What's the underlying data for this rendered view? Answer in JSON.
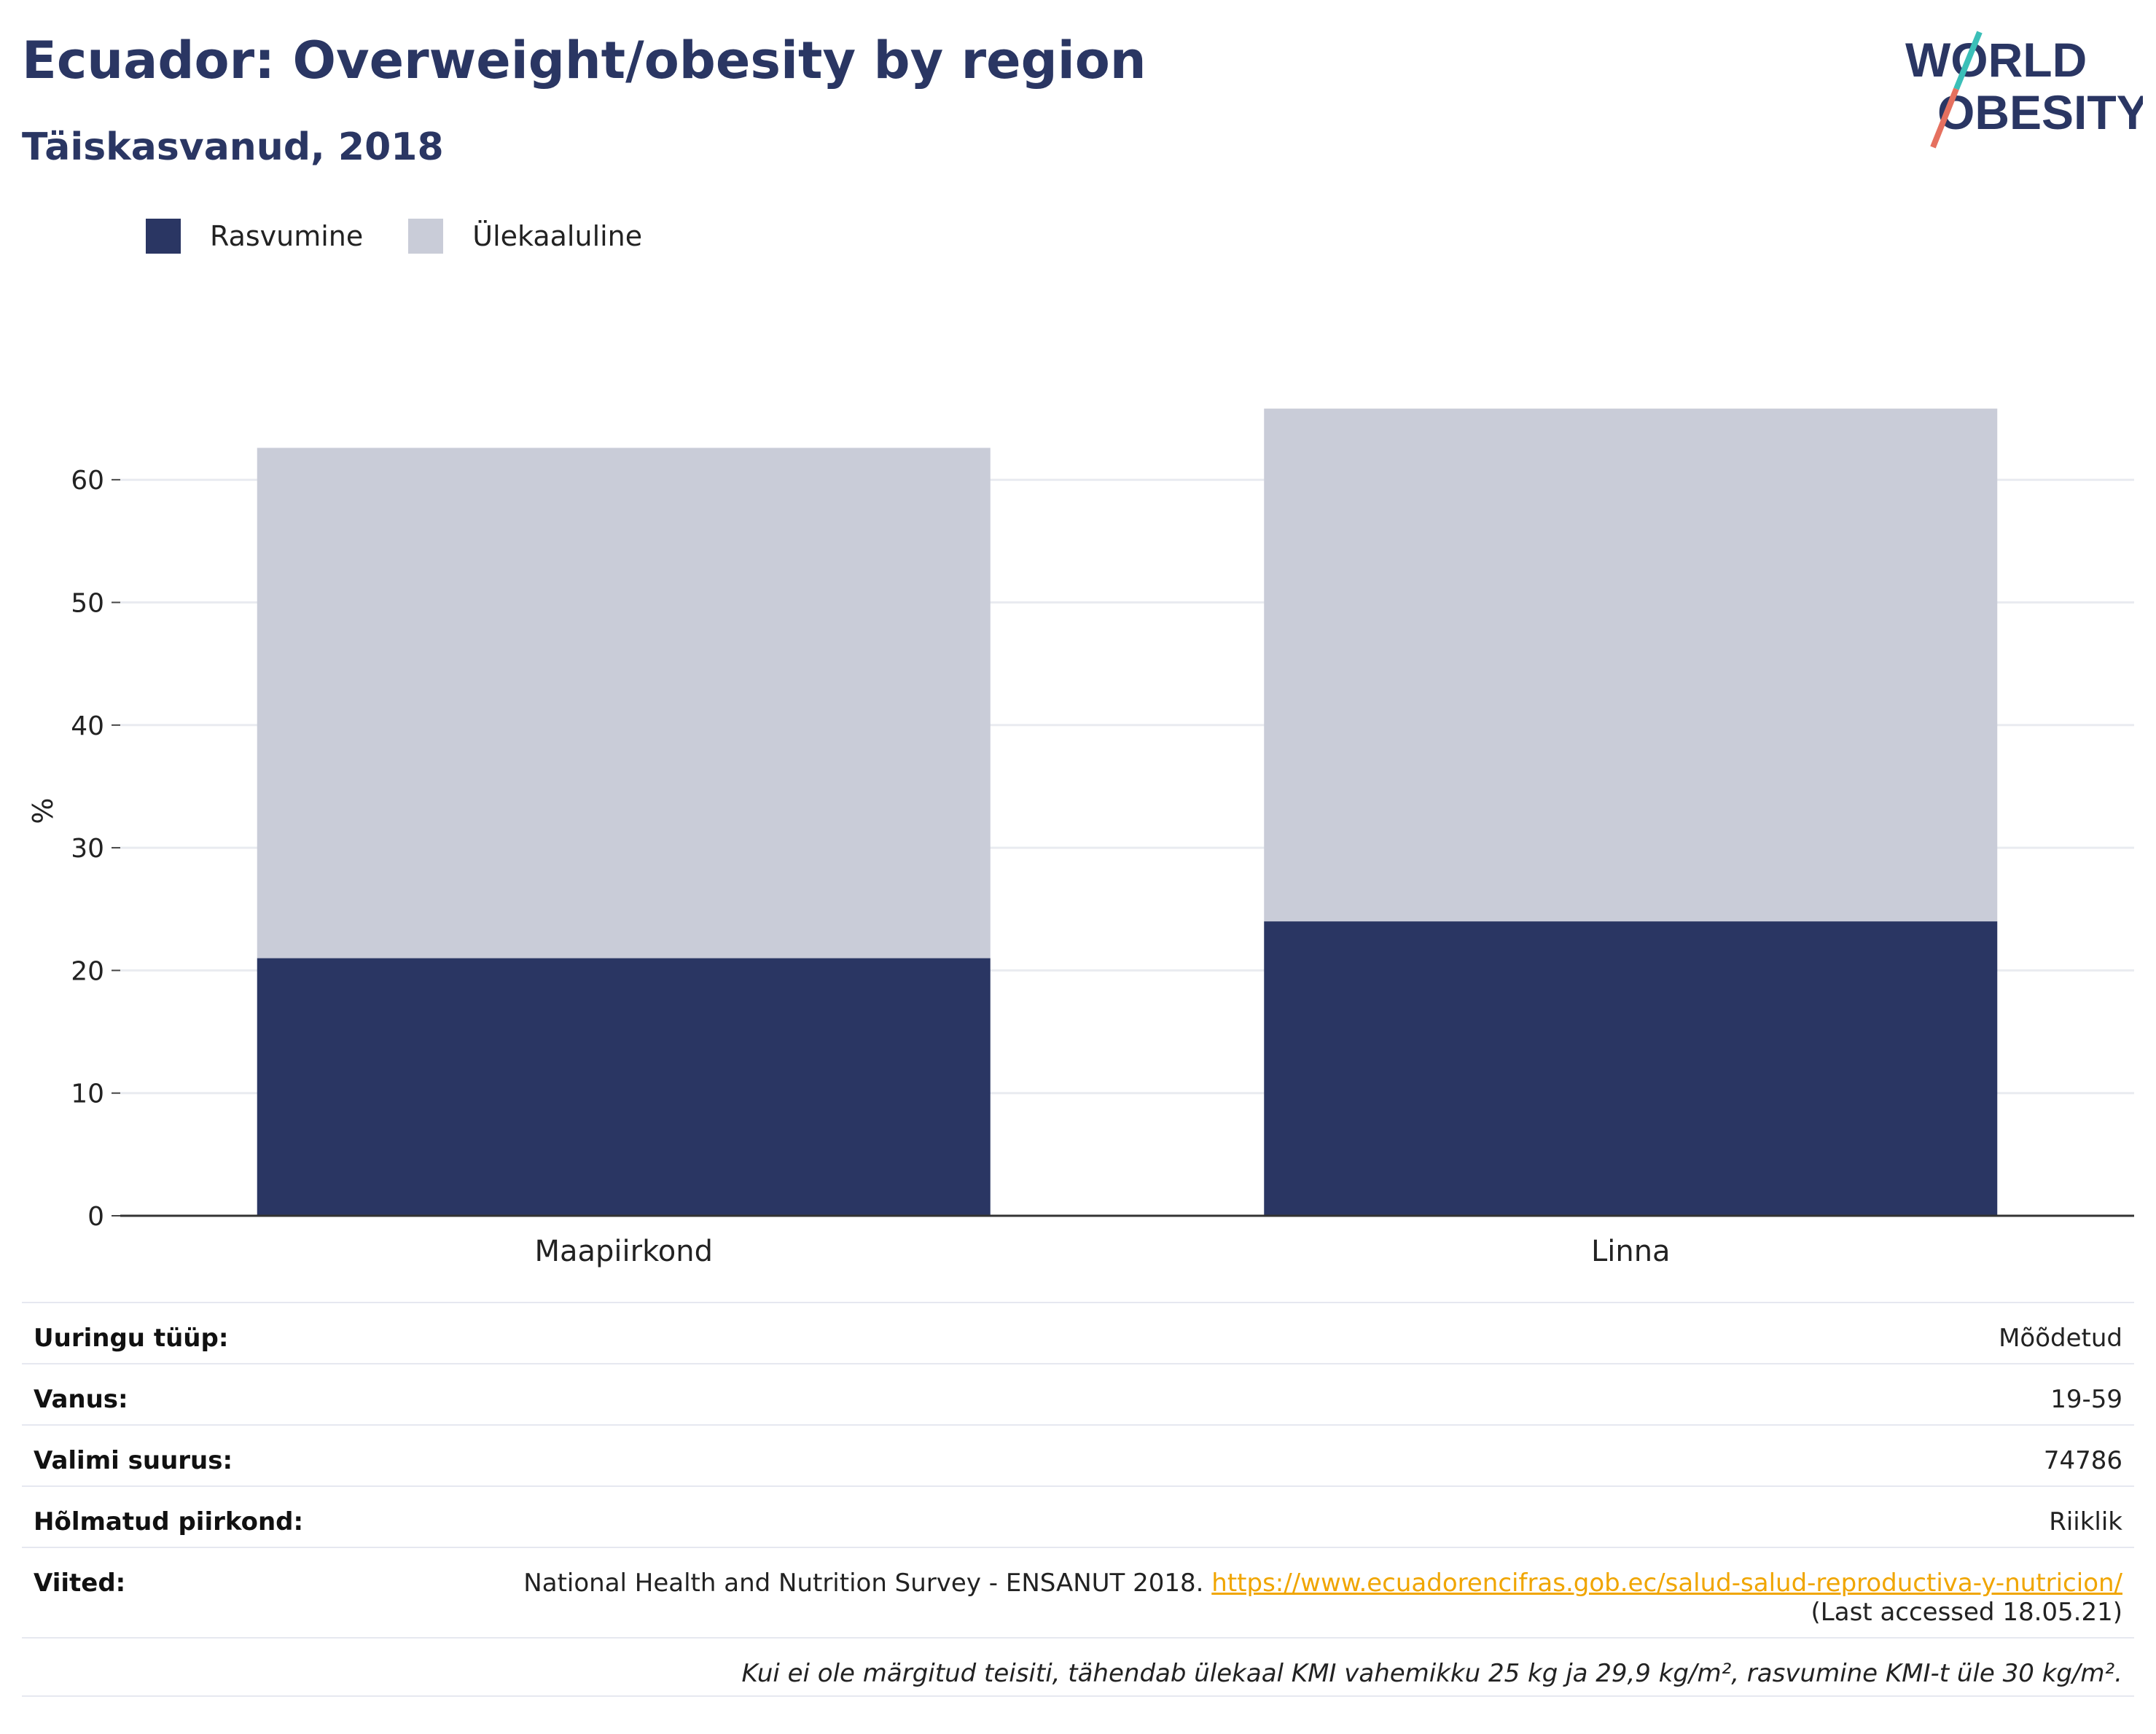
{
  "header": {
    "title": "Ecuador: Overweight/obesity by region",
    "subtitle": "Täiskasvanud, 2018"
  },
  "logo": {
    "line1": "WORLD",
    "line2": "OBESITY"
  },
  "legend": [
    {
      "label": "Rasvumine",
      "color": "#2a3663"
    },
    {
      "label": "Ülekaaluline",
      "color": "#c9ccd8"
    }
  ],
  "chart_data": {
    "type": "bar",
    "stacked": true,
    "categories": [
      "Maapiirkond",
      "Linna"
    ],
    "series": [
      {
        "name": "Rasvumine",
        "values": [
          21.0,
          24.0
        ],
        "color": "#2a3663"
      },
      {
        "name": "Ülekaaluline",
        "values": [
          41.6,
          41.8
        ],
        "color": "#c9ccd8"
      }
    ],
    "ylabel": "%",
    "ylim": [
      0,
      66
    ],
    "yticks": [
      0,
      10,
      20,
      30,
      40,
      50,
      60
    ],
    "grid": true
  },
  "info": {
    "survey_type_label": "Uuringu tüüp:",
    "survey_type_value": "Mõõdetud",
    "age_label": "Vanus:",
    "age_value": "19-59",
    "sample_label": "Valimi suurus:",
    "sample_value": "74786",
    "area_label": "Hõlmatud piirkond:",
    "area_value": "Riiklik",
    "refs_label": "Viited:",
    "refs_text": "National Health and Nutrition Survey - ENSANUT 2018.",
    "refs_link": "https://www.ecuadorencifras.gob.ec/salud-salud-reproductiva-y-nutricion/",
    "refs_accessed": "(Last accessed 18.05.21)",
    "footnote": "Kui ei ole märgitud teisiti, tähendab ülekaal KMI vahemikku 25 kg ja 29,9 kg/m², rasvumine KMI-t üle 30 kg/m²."
  }
}
